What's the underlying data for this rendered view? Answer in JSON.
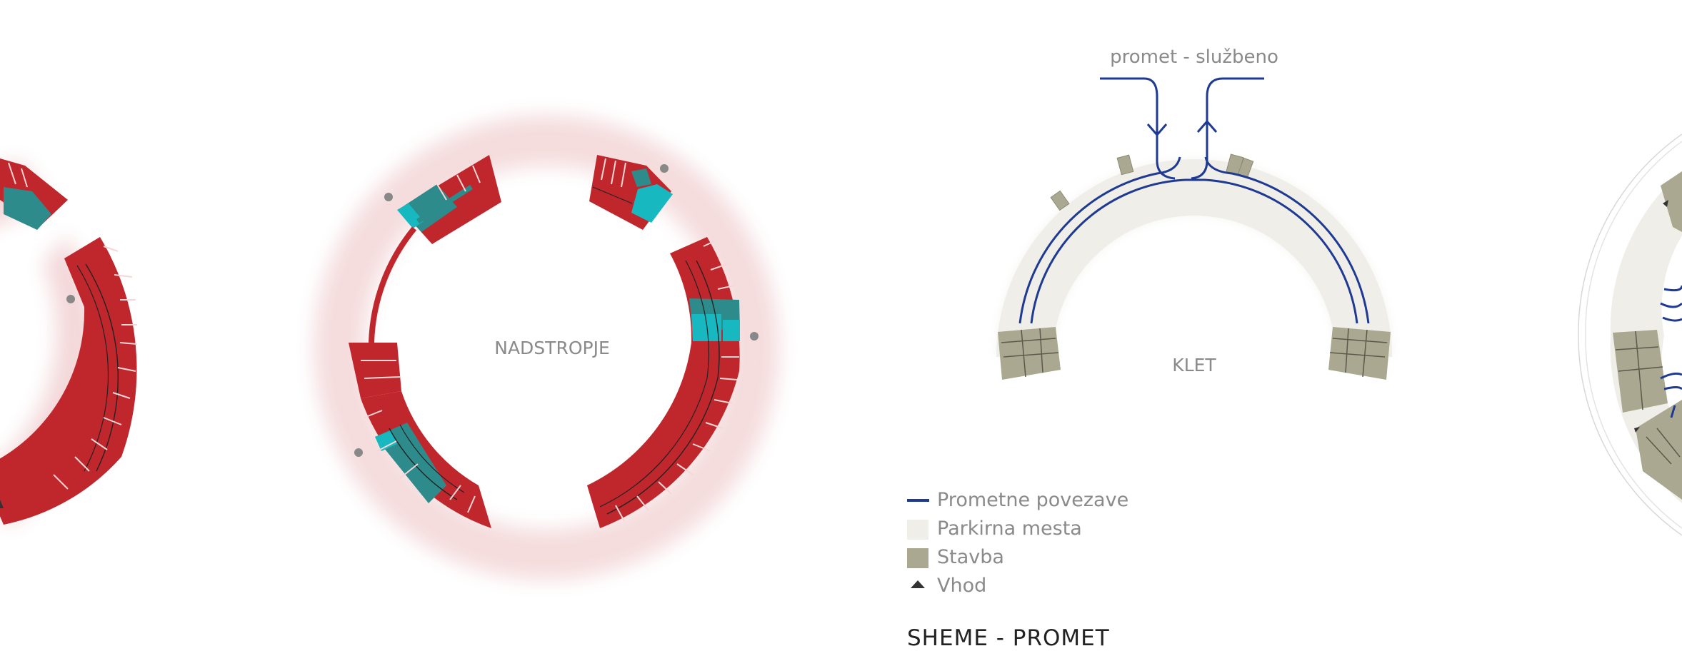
{
  "labels": {
    "nadstropje": "NADSTROPJE",
    "klet": "KLET",
    "traffic_caption": "promet -  službeno"
  },
  "legend": [
    {
      "label": "Prometne povezave",
      "symbol": "line",
      "color": "#1f3a93"
    },
    {
      "label": "Parkirna mesta",
      "symbol": "box",
      "color": "#efeee8"
    },
    {
      "label": "Stavba",
      "symbol": "box",
      "color": "#aaa891"
    },
    {
      "label": "Vhod",
      "symbol": "triangle",
      "color": "#333333"
    }
  ],
  "section_title": "SHEME - PROMET",
  "colors": {
    "red": "#c0272d",
    "teal": "#2e8b8b",
    "cyan": "#17b8c0",
    "parking": "#efeee8",
    "building": "#aaa891",
    "traffic": "#1f3a93",
    "label_gray": "#8a8a8a"
  }
}
